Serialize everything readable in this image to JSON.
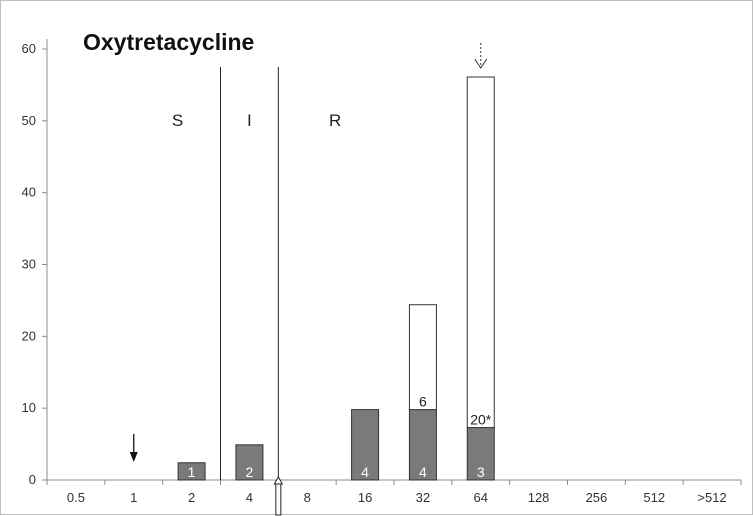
{
  "chart_data": {
    "type": "bar",
    "title": "Oxytretacycline",
    "categories": [
      "0.5",
      "1",
      "2",
      "4",
      "8",
      "16",
      "32",
      "64",
      "128",
      "256",
      "512",
      ">512"
    ],
    "y_ticks": [
      "0",
      "10",
      "20",
      "30",
      "40",
      "50",
      "60"
    ],
    "ylim": [
      0,
      60
    ],
    "series": [
      {
        "values": [
          0,
          0,
          2.4,
          4.9,
          0,
          9.8,
          9.8,
          7.3,
          0,
          0,
          0,
          0
        ],
        "color": "#7a7a7a"
      },
      {
        "values": [
          0,
          0,
          0,
          0,
          0,
          0,
          14.6,
          48.8,
          0,
          0,
          0,
          0
        ],
        "color": "#ffffff"
      }
    ],
    "bar_labels": [
      {
        "category": "2",
        "text": "1",
        "position": "inside-bottom",
        "color": "#ffffff"
      },
      {
        "category": "4",
        "text": "2",
        "position": "inside-bottom",
        "color": "#ffffff"
      },
      {
        "category": "16",
        "text": "4",
        "position": "inside-bottom",
        "color": "#ffffff"
      },
      {
        "category": "32",
        "text": "4",
        "position": "inside-bottom",
        "color": "#ffffff"
      },
      {
        "category": "64",
        "text": "3",
        "position": "inside-bottom",
        "color": "#ffffff"
      },
      {
        "category": "32",
        "text": "6",
        "position": "top-of-lower",
        "color": "#222222"
      },
      {
        "category": "64",
        "text": "20*",
        "position": "top-of-lower",
        "color": "#222222"
      }
    ],
    "zones": [
      {
        "label": "S"
      },
      {
        "label": "I"
      },
      {
        "label": "R"
      }
    ],
    "zone_boundaries": [
      "between 2 and 4",
      "between 4 and 8"
    ],
    "arrows": [
      {
        "category": "1",
        "style": "solid"
      },
      {
        "category": "64",
        "style": "dashed"
      },
      {
        "category": "between 4 and 8",
        "style": "open-axis-marker"
      }
    ],
    "grid": false
  }
}
